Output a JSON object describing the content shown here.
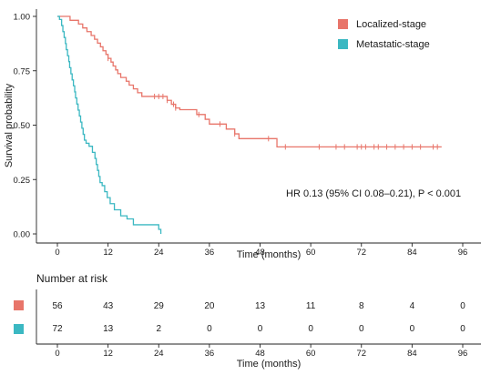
{
  "chart_data": [
    {
      "type": "line",
      "subtype": "kaplan-meier",
      "title": "",
      "xlabel": "Time (months)",
      "ylabel": "Survival probability",
      "xlim": [
        0,
        96
      ],
      "ylim": [
        0,
        1
      ],
      "xticks": [
        0,
        12,
        24,
        36,
        48,
        60,
        72,
        84,
        96
      ],
      "yticks": [
        "0.00",
        "0.25",
        "0.50",
        "0.75",
        "1.00"
      ],
      "grid": false,
      "legend_position": "top-right",
      "annotation": "HR 0.13 (95% CI 0.08–0.21), P < 0.001",
      "series": [
        {
          "name": "Localized-stage",
          "color": "#E8756A",
          "steps": [
            [
              0,
              1.0
            ],
            [
              3,
              0.982
            ],
            [
              5,
              0.965
            ],
            [
              6,
              0.947
            ],
            [
              7,
              0.93
            ],
            [
              8,
              0.912
            ],
            [
              8.8,
              0.895
            ],
            [
              9.5,
              0.877
            ],
            [
              10.2,
              0.86
            ],
            [
              10.8,
              0.842
            ],
            [
              11.5,
              0.825
            ],
            [
              12,
              0.807
            ],
            [
              12.7,
              0.79
            ],
            [
              13.2,
              0.772
            ],
            [
              13.8,
              0.754
            ],
            [
              14.3,
              0.737
            ],
            [
              15,
              0.719
            ],
            [
              16.3,
              0.702
            ],
            [
              17,
              0.684
            ],
            [
              18,
              0.667
            ],
            [
              19,
              0.649
            ],
            [
              20,
              0.632
            ],
            [
              22,
              0.632
            ],
            [
              26,
              0.614
            ],
            [
              27,
              0.596
            ],
            [
              28,
              0.579
            ],
            [
              29,
              0.571
            ],
            [
              31,
              0.571
            ],
            [
              33,
              0.549
            ],
            [
              35,
              0.527
            ],
            [
              36,
              0.505
            ],
            [
              38,
              0.505
            ],
            [
              40,
              0.482
            ],
            [
              42,
              0.46
            ],
            [
              43,
              0.438
            ],
            [
              44,
              0.438
            ],
            [
              52,
              0.4
            ],
            [
              91,
              0.4
            ]
          ],
          "censor_x": [
            12,
            23,
            24,
            25,
            26,
            27.5,
            28,
            33.5,
            38.5,
            42,
            50,
            54,
            62,
            66,
            68,
            71,
            72,
            73,
            75,
            76,
            78,
            80,
            82,
            84,
            86,
            89,
            90
          ]
        },
        {
          "name": "Metastatic-stage",
          "color": "#3BB8C2",
          "steps": [
            [
              0,
              1.0
            ],
            [
              0.5,
              0.986
            ],
            [
              1,
              0.958
            ],
            [
              1.3,
              0.93
            ],
            [
              1.6,
              0.903
            ],
            [
              1.9,
              0.875
            ],
            [
              2.1,
              0.847
            ],
            [
              2.4,
              0.819
            ],
            [
              2.7,
              0.792
            ],
            [
              2.9,
              0.764
            ],
            [
              3.2,
              0.736
            ],
            [
              3.5,
              0.708
            ],
            [
              3.8,
              0.681
            ],
            [
              4.1,
              0.653
            ],
            [
              4.3,
              0.625
            ],
            [
              4.6,
              0.597
            ],
            [
              4.9,
              0.569
            ],
            [
              5.2,
              0.542
            ],
            [
              5.5,
              0.514
            ],
            [
              5.8,
              0.486
            ],
            [
              6.1,
              0.458
            ],
            [
              6.4,
              0.431
            ],
            [
              6.8,
              0.417
            ],
            [
              7.5,
              0.403
            ],
            [
              8.3,
              0.375
            ],
            [
              8.9,
              0.347
            ],
            [
              9.2,
              0.319
            ],
            [
              9.5,
              0.292
            ],
            [
              9.8,
              0.264
            ],
            [
              10.1,
              0.236
            ],
            [
              10.6,
              0.222
            ],
            [
              11.2,
              0.194
            ],
            [
              11.8,
              0.167
            ],
            [
              12.5,
              0.139
            ],
            [
              13.5,
              0.111
            ],
            [
              15,
              0.083
            ],
            [
              16.5,
              0.069
            ],
            [
              18,
              0.042
            ],
            [
              24,
              0.021
            ],
            [
              24.5,
              0.0
            ]
          ],
          "censor_x": []
        }
      ]
    },
    {
      "type": "table",
      "title": "Number at risk",
      "xlabel": "Time (months)",
      "columns": [
        0,
        12,
        24,
        36,
        48,
        60,
        72,
        84,
        96
      ],
      "rows": [
        {
          "name": "Localized-stage",
          "color": "#E8756A",
          "values": [
            "56",
            "43",
            "29",
            "20",
            "13",
            "11",
            "8",
            "4",
            "0"
          ]
        },
        {
          "name": "Metastatic-stage",
          "color": "#3BB8C2",
          "values": [
            "72",
            "13",
            "2",
            "0",
            "0",
            "0",
            "0",
            "0",
            "0"
          ]
        }
      ]
    }
  ]
}
